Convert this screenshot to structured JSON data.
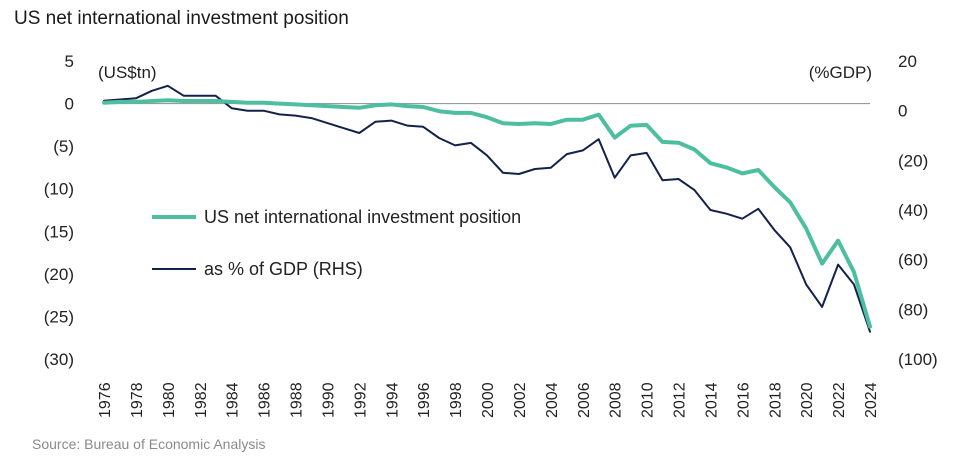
{
  "chart_data": {
    "type": "line",
    "title": "US net international investment position",
    "left_axis_label": "(US$tn)",
    "right_axis_label": "(%GDP)",
    "left_ylim": [
      -30,
      5
    ],
    "right_ylim": [
      -100,
      20
    ],
    "left_ticks": [
      5,
      0,
      -5,
      -10,
      -15,
      -20,
      -25,
      -30
    ],
    "left_tick_labels": [
      "5",
      "0",
      "(5)",
      "(10)",
      "(15)",
      "(20)",
      "(25)",
      "(30)"
    ],
    "right_ticks": [
      20,
      0,
      -20,
      -40,
      -60,
      -80,
      -100
    ],
    "right_tick_labels": [
      "20",
      "0",
      "(20)",
      "(40)",
      "(60)",
      "(80)",
      "(100)"
    ],
    "x_tick_labels": [
      "1976",
      "1978",
      "1980",
      "1982",
      "1984",
      "1986",
      "1988",
      "1990",
      "1992",
      "1994",
      "1996",
      "1998",
      "2000",
      "2002",
      "2004",
      "2006",
      "2008",
      "2010",
      "2012",
      "2014",
      "2016",
      "2018",
      "2020",
      "2022",
      "2024"
    ],
    "x": [
      1976,
      1977,
      1978,
      1979,
      1980,
      1981,
      1982,
      1983,
      1984,
      1985,
      1986,
      1987,
      1988,
      1989,
      1990,
      1991,
      1992,
      1993,
      1994,
      1995,
      1996,
      1997,
      1998,
      1999,
      2000,
      2001,
      2002,
      2003,
      2004,
      2005,
      2006,
      2007,
      2008,
      2009,
      2010,
      2011,
      2012,
      2013,
      2014,
      2015,
      2016,
      2017,
      2018,
      2019,
      2020,
      2021,
      2022,
      2023,
      2024
    ],
    "series": [
      {
        "name": "US net international investment position",
        "axis": "left",
        "color": "#4dbfa0",
        "values": [
          0.1,
          0.2,
          0.2,
          0.3,
          0.4,
          0.3,
          0.3,
          0.3,
          0.2,
          0.1,
          0.1,
          0.0,
          -0.1,
          -0.2,
          -0.3,
          -0.4,
          -0.5,
          -0.2,
          -0.1,
          -0.3,
          -0.4,
          -0.9,
          -1.1,
          -1.1,
          -1.6,
          -2.3,
          -2.4,
          -2.3,
          -2.4,
          -1.9,
          -1.9,
          -1.3,
          -4.0,
          -2.6,
          -2.5,
          -4.5,
          -4.6,
          -5.4,
          -7.0,
          -7.5,
          -8.2,
          -7.8,
          -9.8,
          -11.6,
          -14.7,
          -18.8,
          -16.1,
          -19.8,
          -26.2
        ]
      },
      {
        "name": "as % of GDP (RHS)",
        "axis": "right",
        "color": "#13224d",
        "values": [
          4,
          4.5,
          5,
          8,
          10,
          6,
          6,
          6,
          1,
          0,
          0,
          -1.5,
          -2,
          -3,
          -5,
          -7,
          -9,
          -4.5,
          -4,
          -6,
          -6.5,
          -11,
          -14,
          -13,
          -18,
          -25,
          -25.5,
          -23.5,
          -23,
          -17.5,
          -16,
          -11.5,
          -27,
          -18,
          -17,
          -28,
          -27.5,
          -32,
          -40,
          -41.5,
          -43.5,
          -39.5,
          -48,
          -55,
          -70,
          -79,
          -62,
          -70,
          -89
        ]
      }
    ]
  },
  "source": "Source: Bureau of Economic Analysis"
}
